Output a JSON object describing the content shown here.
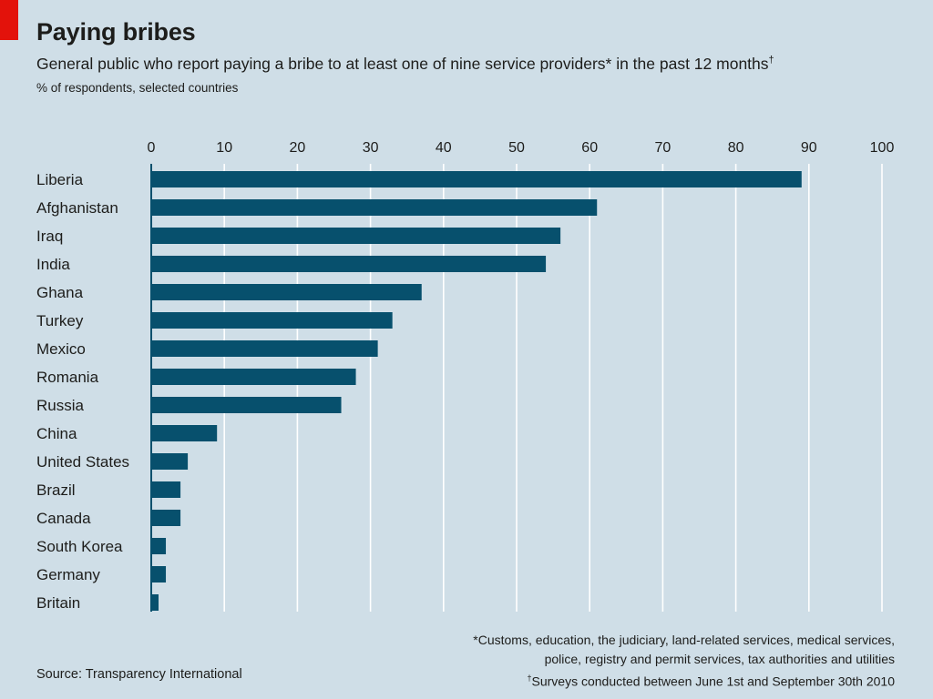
{
  "header": {
    "title": "Paying bribes",
    "subtitle": "General public who report paying a bribe to at least one of nine service providers* in the past 12 months",
    "subtitle_mark": "†",
    "unit_note": "% of respondents, selected countries"
  },
  "footer": {
    "source": "Source: Transparency International",
    "footnote_1a": "*Customs, education, the judiciary, land-related services, medical services,",
    "footnote_1b": "police, registry and permit services, tax authorities and utilities",
    "footnote_2_mark": "†",
    "footnote_2": "Surveys conducted between June 1st and September 30th 2010"
  },
  "colors": {
    "background": "#cfdee7",
    "bar": "#07506d",
    "gridline": "#ffffff",
    "accent": "#e3120b"
  },
  "chart_data": {
    "type": "bar",
    "orientation": "horizontal",
    "title": "Paying bribes",
    "subtitle": "General public who report paying a bribe to at least one of nine service providers* in the past 12 months",
    "unit": "% of respondents, selected countries",
    "categories": [
      "Liberia",
      "Afghanistan",
      "Iraq",
      "India",
      "Ghana",
      "Turkey",
      "Mexico",
      "Romania",
      "Russia",
      "China",
      "United States",
      "Brazil",
      "Canada",
      "South Korea",
      "Germany",
      "Britain"
    ],
    "values": [
      89,
      61,
      56,
      54,
      37,
      33,
      31,
      28,
      26,
      9,
      5,
      4,
      4,
      2,
      2,
      1
    ],
    "xlim": [
      0,
      100
    ],
    "xticks": [
      "0",
      "10",
      "20",
      "30",
      "40",
      "50",
      "60",
      "70",
      "80",
      "90",
      "100"
    ],
    "grid": true,
    "axis_position": "top"
  }
}
